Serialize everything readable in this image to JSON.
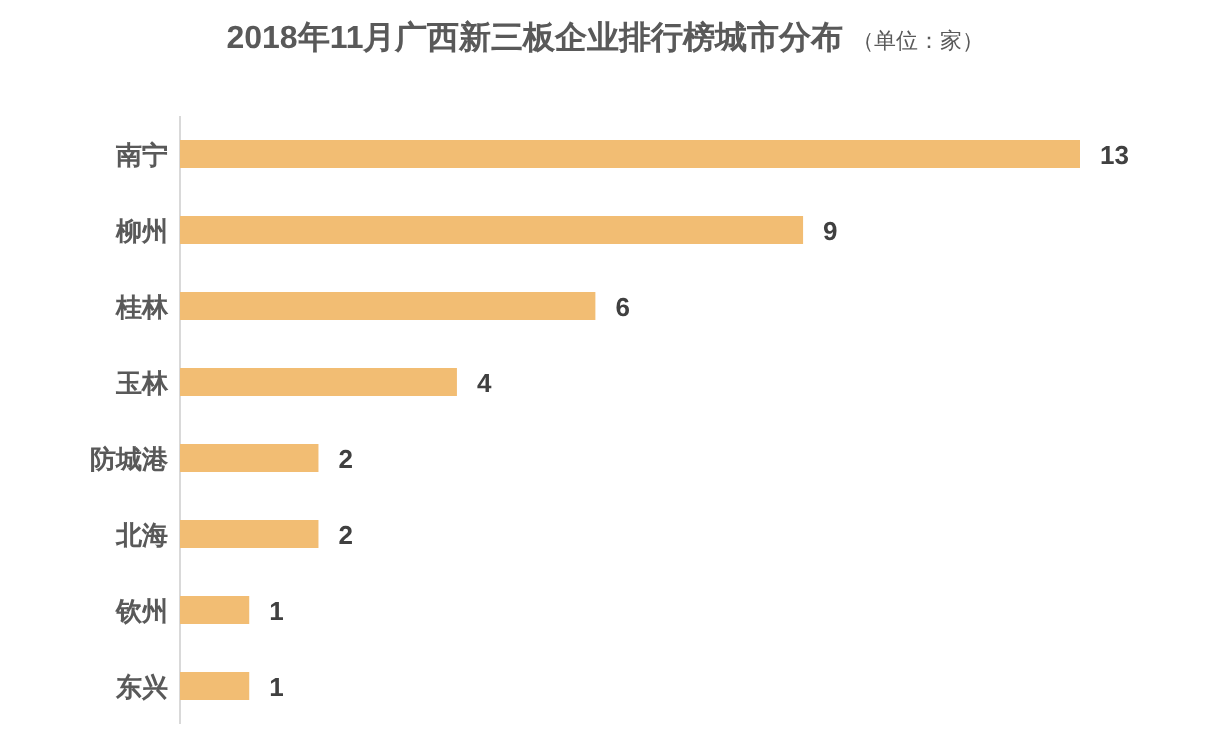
{
  "chart_data": {
    "type": "bar",
    "orientation": "horizontal",
    "title": "2018年11月广西新三板企业排行榜城市分布",
    "subtitle": "（单位：家）",
    "categories": [
      "南宁",
      "柳州",
      "桂林",
      "玉林",
      "防城港",
      "北海",
      "钦州",
      "东兴"
    ],
    "values": [
      13,
      9,
      6,
      4,
      2,
      2,
      1,
      1
    ],
    "color": "#f2bd73",
    "data_labels": true
  }
}
